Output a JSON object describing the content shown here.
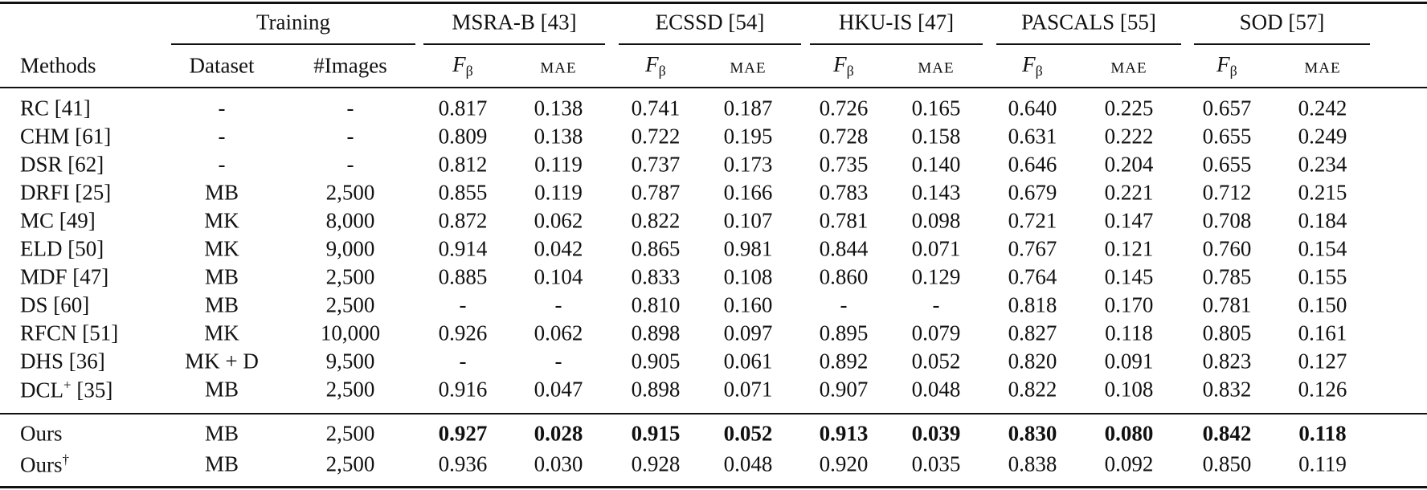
{
  "table": {
    "groups": [
      "Training",
      "MSRA-B [43]",
      "ECSSD [54]",
      "HKU-IS [47]",
      "PASCALS [55]",
      "SOD [57]"
    ],
    "columns": [
      "Methods",
      "Dataset",
      "#Images",
      {
        "main": "F",
        "sub": "β"
      },
      "MAE",
      {
        "main": "F",
        "sub": "β"
      },
      "MAE",
      {
        "main": "F",
        "sub": "β"
      },
      "MAE",
      {
        "main": "F",
        "sub": "β"
      },
      "MAE",
      {
        "main": "F",
        "sub": "β"
      },
      "MAE"
    ],
    "rows": [
      {
        "method": "RC [41]",
        "dataset": "-",
        "images": "-",
        "values": [
          "0.817",
          "0.138",
          "0.741",
          "0.187",
          "0.726",
          "0.165",
          "0.640",
          "0.225",
          "0.657",
          "0.242"
        ]
      },
      {
        "method": "CHM [61]",
        "dataset": "-",
        "images": "-",
        "values": [
          "0.809",
          "0.138",
          "0.722",
          "0.195",
          "0.728",
          "0.158",
          "0.631",
          "0.222",
          "0.655",
          "0.249"
        ]
      },
      {
        "method": "DSR [62]",
        "dataset": "-",
        "images": "-",
        "values": [
          "0.812",
          "0.119",
          "0.737",
          "0.173",
          "0.735",
          "0.140",
          "0.646",
          "0.204",
          "0.655",
          "0.234"
        ]
      },
      {
        "method": "DRFI [25]",
        "dataset": "MB",
        "images": "2,500",
        "values": [
          "0.855",
          "0.119",
          "0.787",
          "0.166",
          "0.783",
          "0.143",
          "0.679",
          "0.221",
          "0.712",
          "0.215"
        ]
      },
      {
        "method": "MC [49]",
        "dataset": "MK",
        "images": "8,000",
        "values": [
          "0.872",
          "0.062",
          "0.822",
          "0.107",
          "0.781",
          "0.098",
          "0.721",
          "0.147",
          "0.708",
          "0.184"
        ]
      },
      {
        "method": "ELD [50]",
        "dataset": "MK",
        "images": "9,000",
        "values": [
          "0.914",
          "0.042",
          "0.865",
          "0.981",
          "0.844",
          "0.071",
          "0.767",
          "0.121",
          "0.760",
          "0.154"
        ]
      },
      {
        "method": "MDF [47]",
        "dataset": "MB",
        "images": "2,500",
        "values": [
          "0.885",
          "0.104",
          "0.833",
          "0.108",
          "0.860",
          "0.129",
          "0.764",
          "0.145",
          "0.785",
          "0.155"
        ]
      },
      {
        "method": "DS [60]",
        "dataset": "MB",
        "images": "2,500",
        "values": [
          "-",
          "-",
          "0.810",
          "0.160",
          "-",
          "-",
          "0.818",
          "0.170",
          "0.781",
          "0.150"
        ]
      },
      {
        "method": "RFCN [51]",
        "dataset": "MK",
        "images": "10,000",
        "values": [
          "0.926",
          "0.062",
          "0.898",
          "0.097",
          "0.895",
          "0.079",
          "0.827",
          "0.118",
          "0.805",
          "0.161"
        ]
      },
      {
        "method": "DHS [36]",
        "dataset": "MK + D",
        "images": "9,500",
        "values": [
          "-",
          "-",
          "0.905",
          "0.061",
          "0.892",
          "0.052",
          "0.820",
          "0.091",
          "0.823",
          "0.127"
        ]
      },
      {
        "method": {
          "name": "DCL",
          "sup": "+",
          "ref": "[35]"
        },
        "dataset": "MB",
        "images": "2,500",
        "values": [
          "0.916",
          "0.047",
          "0.898",
          "0.071",
          "0.907",
          "0.048",
          "0.822",
          "0.108",
          "0.832",
          "0.126"
        ]
      }
    ],
    "ours_rows": [
      {
        "method": "Ours",
        "dataset": "MB",
        "images": "2,500",
        "bold": true,
        "values": [
          "0.927",
          "0.028",
          "0.915",
          "0.052",
          "0.913",
          "0.039",
          "0.830",
          "0.080",
          "0.842",
          "0.118"
        ]
      },
      {
        "method": {
          "name": "Ours",
          "sup": "†"
        },
        "dataset": "MB",
        "images": "2,500",
        "values": [
          "0.936",
          "0.030",
          "0.928",
          "0.048",
          "0.920",
          "0.035",
          "0.838",
          "0.092",
          "0.850",
          "0.119"
        ]
      }
    ]
  }
}
